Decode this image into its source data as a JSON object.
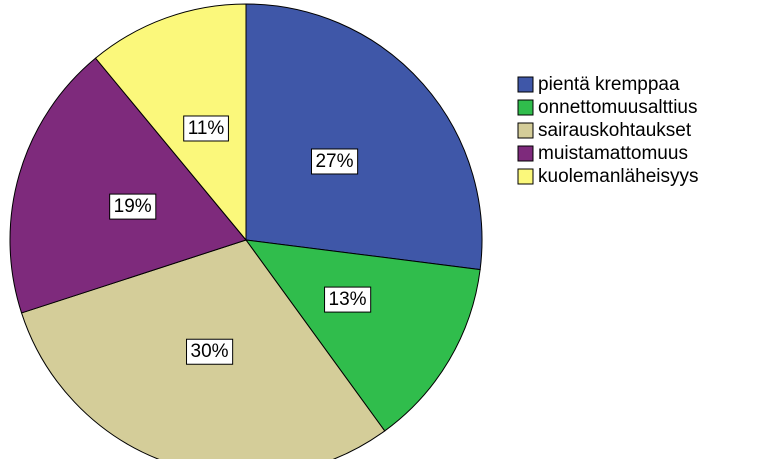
{
  "chart_data": {
    "type": "pie",
    "categories": [
      "pientä kremppaa",
      "onnettomuusalttius",
      "sairauskohtaukset",
      "muistamattomuus",
      "kuolemanläheisyys"
    ],
    "values": [
      27,
      13,
      30,
      19,
      11
    ],
    "value_labels": [
      "27%",
      "13%",
      "30%",
      "19%",
      "11%"
    ],
    "colors": [
      "#3f57a8",
      "#30bd4c",
      "#d4cd99",
      "#7e2a7c",
      "#fbf87b"
    ],
    "legend": "right"
  }
}
